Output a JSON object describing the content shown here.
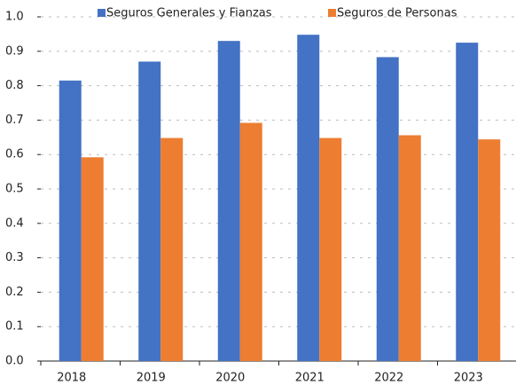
{
  "chart_data": {
    "type": "bar",
    "categories": [
      "2018",
      "2019",
      "2020",
      "2021",
      "2022",
      "2023"
    ],
    "series": [
      {
        "name": "Seguros Generales y Fianzas",
        "color": "#4472c4",
        "values": [
          0.815,
          0.87,
          0.93,
          0.948,
          0.883,
          0.925
        ]
      },
      {
        "name": "Seguros de Personas",
        "color": "#ed7d31",
        "values": [
          0.592,
          0.648,
          0.692,
          0.648,
          0.656,
          0.644
        ]
      }
    ],
    "ylim": [
      0,
      1
    ],
    "yticks": [
      {
        "value": 0,
        "label": "0.0"
      },
      0.1,
      0.2,
      0.3,
      0.4,
      0.5,
      0.6,
      0.7,
      0.8,
      0.9,
      {
        "value": 1,
        "label": "1.0"
      }
    ],
    "grid": true,
    "legend": "top"
  }
}
